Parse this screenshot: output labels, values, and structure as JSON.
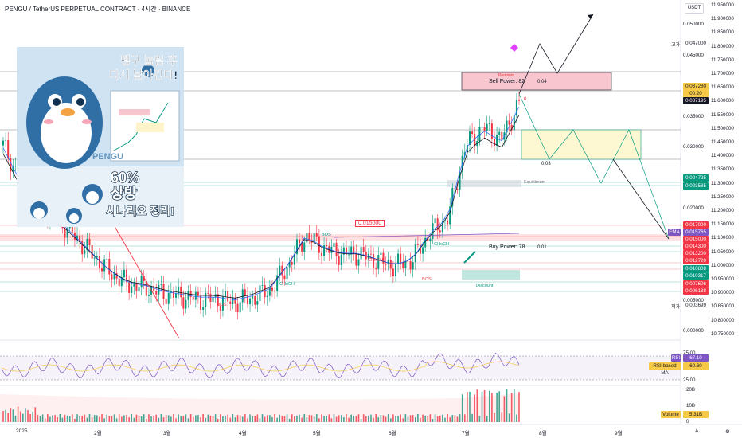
{
  "title": "PENGU / TetherUS PERPETUAL CONTRACT · 4시간 · BINANCE",
  "currency_button": "USDT",
  "thumbnail": {
    "headline_line1": "펭구 눌림 후",
    "headline_line2": "다시 날아간다!",
    "percent": "60%",
    "rise": "상방",
    "scenario": "시나리오 정리!",
    "brand": "PENGU"
  },
  "annotations": {
    "premium": "Premium",
    "sell_power": "Sell Power: 82",
    "sell_power_value": "0.04",
    "buy_power": "Buy Power: 78",
    "buy_power_value": "0.01",
    "equilibrium": "Equilibrium",
    "discount": "Discount",
    "bos": "BOS",
    "choch": "CHoCH",
    "mid_value": "0.03",
    "level_box": "0.015000",
    "zero_tag": "0"
  },
  "left_axis": [
    "0.050000",
    "0.045000",
    "0.040000",
    "0.035000",
    "0.030000",
    "0.025000",
    "0.020000",
    "0.015000",
    "0.010000",
    "0.005000",
    "0.000000"
  ],
  "right_axis": [
    "11.950000",
    "11.900000",
    "11.850000",
    "11.800000",
    "11.750000",
    "11.700000",
    "11.650000",
    "11.600000",
    "11.550000",
    "11.500000",
    "11.450000",
    "11.400000",
    "11.350000",
    "11.300000",
    "11.250000",
    "11.200000",
    "11.150000",
    "11.100000",
    "11.050000",
    "11.000000",
    "10.950000",
    "10.900000",
    "10.850000",
    "10.800000",
    "10.750000"
  ],
  "price_tags": [
    {
      "text": "고가",
      "value": "0.047000",
      "color": "#ffffff",
      "text_color": "#131722"
    },
    {
      "text": "",
      "value": "0.037280",
      "color": "#f7c948",
      "text_color": "#131722"
    },
    {
      "text": "",
      "value": "00:20",
      "color": "#f7c948",
      "text_color": "#131722"
    },
    {
      "text": "",
      "value": "0.037195",
      "color": "#131722",
      "text_color": "#ffffff"
    },
    {
      "text": "",
      "value": "0.024725",
      "color": "#089981",
      "text_color": "#ffffff"
    },
    {
      "text": "",
      "value": "0.023585",
      "color": "#089981",
      "text_color": "#ffffff"
    },
    {
      "text": "",
      "value": "0.017000",
      "color": "#f23645",
      "text_color": "#ffffff"
    },
    {
      "text": "",
      "value": "0.015765",
      "color": "#7e57c2",
      "text_color": "#ffffff"
    },
    {
      "text": "",
      "value": "0.015000",
      "color": "#f23645",
      "text_color": "#ffffff"
    },
    {
      "text": "",
      "value": "0.014300",
      "color": "#f23645",
      "text_color": "#ffffff"
    },
    {
      "text": "",
      "value": "0.013200",
      "color": "#f23645",
      "text_color": "#ffffff"
    },
    {
      "text": "",
      "value": "0.012720",
      "color": "#f23645",
      "text_color": "#ffffff"
    },
    {
      "text": "",
      "value": "0.010808",
      "color": "#089981",
      "text_color": "#ffffff"
    },
    {
      "text": "",
      "value": "0.010317",
      "color": "#089981",
      "text_color": "#ffffff"
    },
    {
      "text": "",
      "value": "0.007606",
      "color": "#f23645",
      "text_color": "#ffffff"
    },
    {
      "text": "",
      "value": "0.006138",
      "color": "#f23645",
      "text_color": "#ffffff"
    },
    {
      "text": "저가",
      "value": "0.003699",
      "color": "#ffffff",
      "text_color": "#131722"
    }
  ],
  "ema_label": "EMA",
  "rsi": {
    "label": "RSI",
    "value": "67.10",
    "ma_label": "RSI-based MA",
    "ma_value": "60.60",
    "levels": [
      "75.00",
      "25.00"
    ]
  },
  "volume": {
    "label": "Volume",
    "value": "5.31B",
    "ticks": [
      "20B",
      "10B",
      "0"
    ]
  },
  "x_axis": [
    "2025",
    "2월",
    "3월",
    "4월",
    "5월",
    "6월",
    "7월",
    "8월",
    "9월"
  ],
  "x_axis_corner": [
    "A",
    "⚙"
  ],
  "chart_data": {
    "type": "line",
    "title": "PENGU / TetherUS PERPETUAL CONTRACT · 4시간 · BINANCE",
    "x_labels": [
      "2025",
      "2월",
      "3월",
      "4월",
      "5월",
      "6월",
      "7월",
      "8월",
      "9월"
    ],
    "y_range": [
      0,
      0.05
    ],
    "series": [
      {
        "name": "",
        "values": [
          0.03,
          0.024,
          0.02,
          0.018,
          0.015,
          0.012,
          0.009,
          0.007,
          0.0065,
          0.0055,
          0.005,
          0.0045,
          0.0045,
          0.004,
          0.0047,
          0.006,
          0.01,
          0.015,
          0.013,
          0.012,
          0.012,
          0.011,
          0.01,
          0.011,
          0.0155,
          0.018,
          0.03,
          0.033,
          0.031,
          0.037
        ]
      }
    ],
    "projection": [
      0.037,
      0.047,
      0.039,
      0.03,
      0.035,
      0.03,
      0.035,
      0.023,
      0.015
    ],
    "grid": false
  }
}
